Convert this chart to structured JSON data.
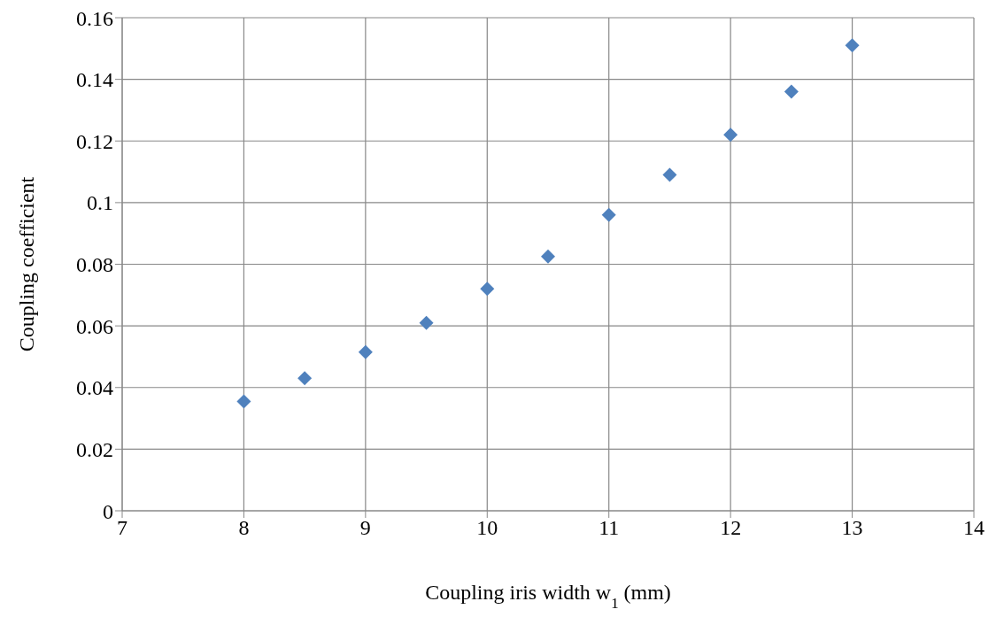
{
  "chart_data": {
    "type": "scatter",
    "xlabel": "Coupling iris width w$_{1}$ (mm)",
    "ylabel": "Coupling coefficient",
    "x": [
      8,
      8.5,
      9,
      9.5,
      10,
      10.5,
      11,
      11.5,
      12,
      12.5,
      13
    ],
    "series": [
      {
        "color": "#4f81bd",
        "values": [
          0.0355,
          0.043,
          0.0515,
          0.061,
          0.072,
          0.0825,
          0.096,
          0.109,
          0.122,
          0.136,
          0.151
        ]
      }
    ],
    "xlim": [
      7,
      14
    ],
    "xticks": [
      7,
      8,
      9,
      10,
      11,
      12,
      13,
      14
    ],
    "ylim": [
      0,
      0.16
    ],
    "yticks": [
      0,
      0.02,
      0.04,
      0.06,
      0.08,
      0.1,
      0.12,
      0.14,
      0.16
    ],
    "grid": true,
    "marker": "diamond",
    "legend": false
  }
}
